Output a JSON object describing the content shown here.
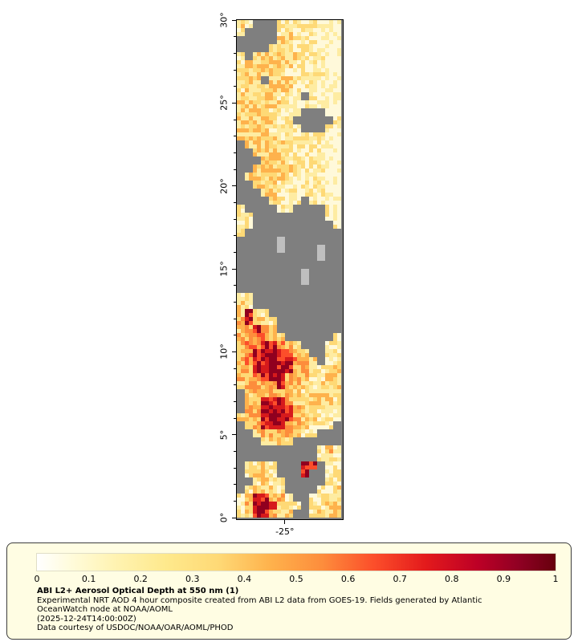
{
  "page": {
    "background": "#ffffff"
  },
  "chart_data": {
    "type": "heatmap",
    "title": "ABI L2+ Aerosol Optical Depth at 550 nm (1)",
    "value_range": [
      0,
      1
    ],
    "y_axis": {
      "tick_labels": [
        "30°",
        "25°",
        "20°",
        "15°",
        "10°",
        "5°",
        "0°"
      ],
      "degrees_top_to_bottom": [
        30,
        0
      ],
      "minor_ticks_per_degree": 1
    },
    "x_axis": {
      "ticks": [
        {
          "label": "-25°",
          "frac": 0.46
        }
      ]
    },
    "colorbar": {
      "tick_labels": [
        "0",
        "0.1",
        "0.2",
        "0.3",
        "0.4",
        "0.5",
        "0.6",
        "0.7",
        "0.8",
        "0.9",
        "1"
      ],
      "stops": [
        {
          "pos": 0.0,
          "color": "#ffffff"
        },
        {
          "pos": 0.07,
          "color": "#fffbd9"
        },
        {
          "pos": 0.15,
          "color": "#fff3b2"
        },
        {
          "pos": 0.25,
          "color": "#fee98c"
        },
        {
          "pos": 0.35,
          "color": "#fed976"
        },
        {
          "pos": 0.45,
          "color": "#feb24c"
        },
        {
          "pos": 0.55,
          "color": "#fd8d3c"
        },
        {
          "pos": 0.65,
          "color": "#fc4e2a"
        },
        {
          "pos": 0.75,
          "color": "#e31a1c"
        },
        {
          "pos": 0.85,
          "color": "#bd0026"
        },
        {
          "pos": 0.93,
          "color": "#8f0023"
        },
        {
          "pos": 1.0,
          "color": "#67000d"
        }
      ]
    },
    "no_data_color": "#7f7f7f",
    "island_color": "#bfbfbf",
    "cell_size": 10,
    "ramp": "abcdefrs",
    "palette": {
      "g": "#7f7f7f",
      "G": "#bfbfbf",
      "a": "#fff9da",
      "b": "#feeca2",
      "c": "#fed976",
      "d": "#feb24c",
      "e": "#fd8d3c",
      "f": "#fc4e2a",
      "r": "#d61a1c",
      "s": "#90001f"
    },
    "grid": [
      "cbgggbbbbbaaa",
      "bggggbcbbbaaa",
      "gggggccbbbaaa",
      "ggggcccbbbbaa",
      "bgccccccbbbaa",
      "bccccccbbbbaa",
      "ccccccbbbbbaa",
      "cccgcccbbbbaa",
      "bccccccbbbaaa",
      "cccccbbbgbaaa",
      "ccccccbbbbaaa",
      "ccccbbbbgggaa",
      "cccccbbgggggb",
      "ccccbbbbgggba",
      "cccccbbbbbbaa",
      "gccccccbbbbaa",
      "ggccccbbbbbaa",
      "gggcccbbbbbaa",
      "ggcccccbbbbaa",
      "gcccccbbbbbaa",
      "ggcccbbbbbbaa",
      "gggccbbbbbbaa",
      "ggggcbbbgbbaa",
      "bggggbbggggba",
      "bbgggggggggba",
      "bbggggggggggb",
      "bgggggggggggg",
      "gggggGggggggg",
      "gggggGggggGgg",
      "ggggggggggGgg",
      "ggggggggggggg",
      "ggggggggGgggg",
      "ggggggggGgggg",
      "ggggggggggggg",
      "bbggggggggggg",
      "cbggggggggggg",
      "crcbggggggggg",
      "drdcbgggggggg",
      "cdrdcgggggggg",
      "ddeedcggggggb",
      "deerredcgggbb",
      "derrrredcggbb",
      "derrsrredcgbb",
      "ddrrsrrddcbbc",
      "dderrrdddbbcc",
      "cddderddcbccc",
      "gcdddddcbcccb",
      "gcdrrsdcccccb",
      "gddrssrdccbbb",
      "cddrsrrdccbbb",
      "gcdrrrddcbbbg",
      "ggcddddcbbggg",
      "gggcccbgggggg",
      "ggggggggggbdb",
      "ggggggggggbbb",
      "gbbcbgggrrgbb",
      "gbccbgggrggbb",
      "ggbcbbgggggbb",
      "gbcccbggggbbc",
      "bcrrcdbggbbcc",
      "bdrsrccbgbbcc",
      "bcrrdccggbccc"
    ]
  },
  "legend": {
    "title": "ABI L2+ Aerosol Optical Depth at 550 nm (1)",
    "description_line1": "Experimental NRT AOD 4 hour composite created from ABI L2 data from GOES-19. Fields generated by Atlantic",
    "description_line2": "OceanWatch node at NOAA/AOML",
    "timestamp": "(2025-12-24T14:00:00Z)",
    "credit": "Data courtesy of USDOC/NOAA/OAR/AOML/PHOD"
  }
}
